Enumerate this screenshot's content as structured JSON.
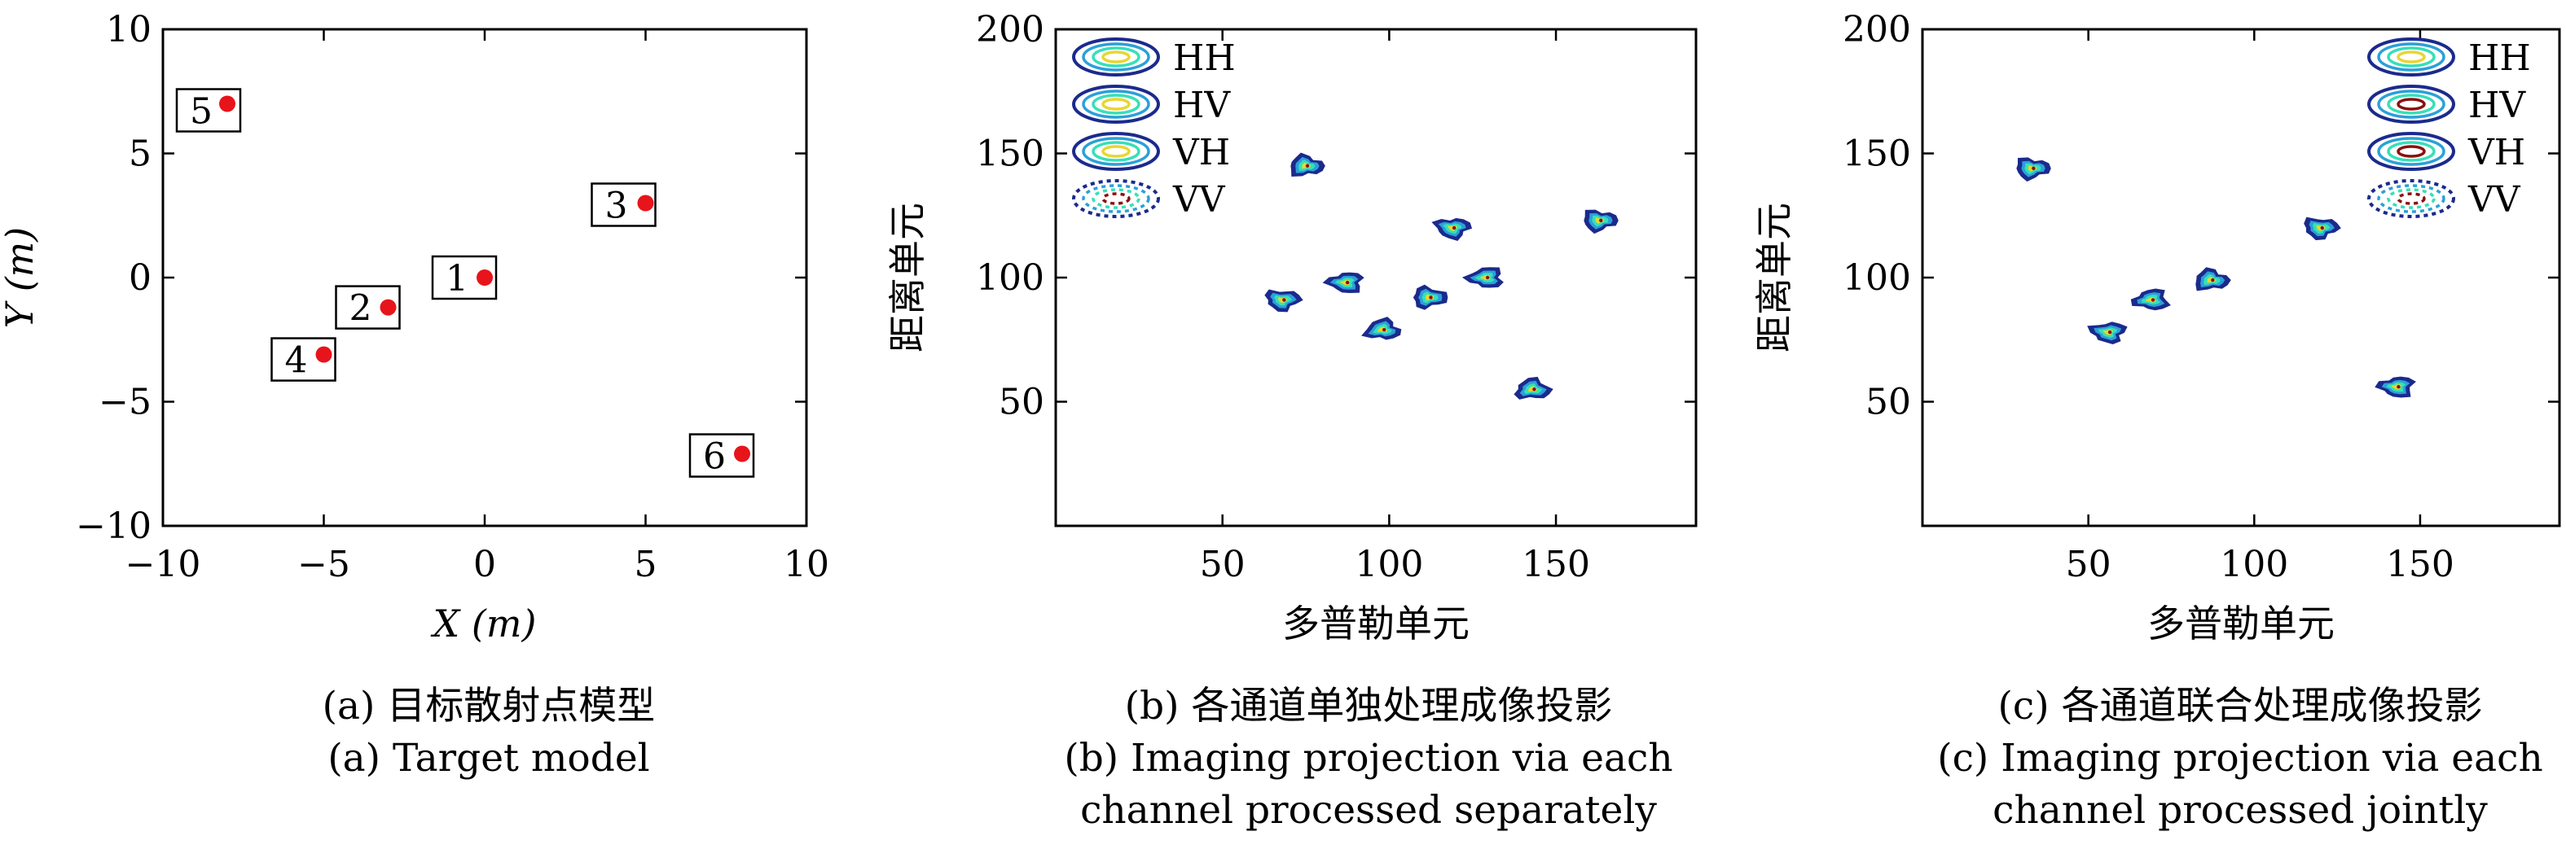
{
  "chart_data": [
    {
      "type": "scatter",
      "xlabel": "X (m)",
      "ylabel": "Y (m)",
      "xlim": [
        -10,
        10
      ],
      "ylim": [
        -10,
        10
      ],
      "xticks": [
        "−10",
        "−5",
        "0",
        "5",
        "10"
      ],
      "yticks": [
        "10",
        "5",
        "0",
        "−5",
        "−10"
      ],
      "grid": false,
      "point_color": "#e8141b",
      "points": [
        {
          "label": "1",
          "x": 0,
          "y": 0
        },
        {
          "label": "2",
          "x": -3,
          "y": -1.2
        },
        {
          "label": "3",
          "x": 5,
          "y": 3
        },
        {
          "label": "4",
          "x": -5,
          "y": -3.1
        },
        {
          "label": "5",
          "x": -8,
          "y": 7
        },
        {
          "label": "6",
          "x": 8,
          "y": -7.1
        }
      ],
      "caption": [
        "(a) 目标散射点模型",
        "(a) Target model"
      ]
    },
    {
      "type": "scatter",
      "xlabel": "多普勒单元",
      "ylabel": "距离单元",
      "xlim": [
        0,
        192
      ],
      "ylim": [
        0,
        200
      ],
      "xticks": [
        "50",
        "100",
        "150"
      ],
      "yticks": [
        "200",
        "150",
        "100",
        "50"
      ],
      "grid": false,
      "legend": {
        "placement": "top-left",
        "entries": [
          "HH",
          "HV",
          "VH",
          "VV"
        ]
      },
      "blobs": [
        {
          "x": 75,
          "y": 145
        },
        {
          "x": 68,
          "y": 91
        },
        {
          "x": 87,
          "y": 98
        },
        {
          "x": 98,
          "y": 79
        },
        {
          "x": 112,
          "y": 92
        },
        {
          "x": 119,
          "y": 120
        },
        {
          "x": 129,
          "y": 100
        },
        {
          "x": 143,
          "y": 55
        },
        {
          "x": 163,
          "y": 123
        }
      ],
      "caption": [
        "(b) 各通道单独处理成像投影",
        "(b) Imaging projection via each",
        "channel processed separately"
      ]
    },
    {
      "type": "scatter",
      "xlabel": "多普勒单元",
      "ylabel": "距离单元",
      "xlim": [
        0,
        192
      ],
      "ylim": [
        0,
        200
      ],
      "xticks": [
        "50",
        "100",
        "150"
      ],
      "yticks": [
        "200",
        "150",
        "100",
        "50"
      ],
      "grid": false,
      "legend": {
        "placement": "top-right",
        "entries": [
          "HH",
          "HV",
          "VH",
          "VV"
        ]
      },
      "blobs": [
        {
          "x": 33,
          "y": 144
        },
        {
          "x": 56,
          "y": 78
        },
        {
          "x": 69,
          "y": 91
        },
        {
          "x": 87,
          "y": 99
        },
        {
          "x": 120,
          "y": 120
        },
        {
          "x": 143,
          "y": 56
        }
      ],
      "caption": [
        "(c) 各通道联合处理成像投影",
        "(c) Imaging projection via each",
        "channel processed jointly"
      ]
    }
  ],
  "colors": {
    "axis": "#000000",
    "marker": "#e8141b",
    "contour_outer": "#1b2a8c",
    "contour_mid": "#2ba0d8",
    "contour_inner": "#36e0b8",
    "contour_core": "#e8d630",
    "contour_hot": "#8b0f0f"
  }
}
